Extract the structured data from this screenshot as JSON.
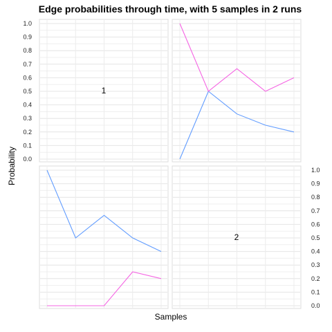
{
  "chart_data": {
    "type": "line",
    "title": "Edge probabilities through time, with 5 samples in 2 runs",
    "xlabel": "Samples",
    "ylabel": "Probability",
    "ylim": [
      0,
      1
    ],
    "y_ticks": [
      "0.0",
      "0.1",
      "0.2",
      "0.3",
      "0.4",
      "0.5",
      "0.6",
      "0.7",
      "0.8",
      "0.9",
      "1.0"
    ],
    "x": [
      1,
      2,
      3,
      4,
      5
    ],
    "colors": {
      "run1": "#619cff",
      "run2": "#f564e3"
    },
    "grid": true,
    "diagonal_labels": [
      "1",
      "2"
    ],
    "panels": [
      {
        "position": "top-right",
        "series": [
          {
            "color_key": "run1",
            "values": [
              0.0,
              0.5,
              0.333,
              0.25,
              0.2
            ]
          },
          {
            "color_key": "run2",
            "values": [
              1.0,
              0.5,
              0.667,
              0.5,
              0.6
            ]
          }
        ]
      },
      {
        "position": "bottom-left",
        "series": [
          {
            "color_key": "run1",
            "values": [
              1.0,
              0.5,
              0.667,
              0.5,
              0.4
            ]
          },
          {
            "color_key": "run2",
            "values": [
              0.0,
              0.0,
              0.0,
              0.25,
              0.2
            ]
          }
        ]
      }
    ]
  }
}
